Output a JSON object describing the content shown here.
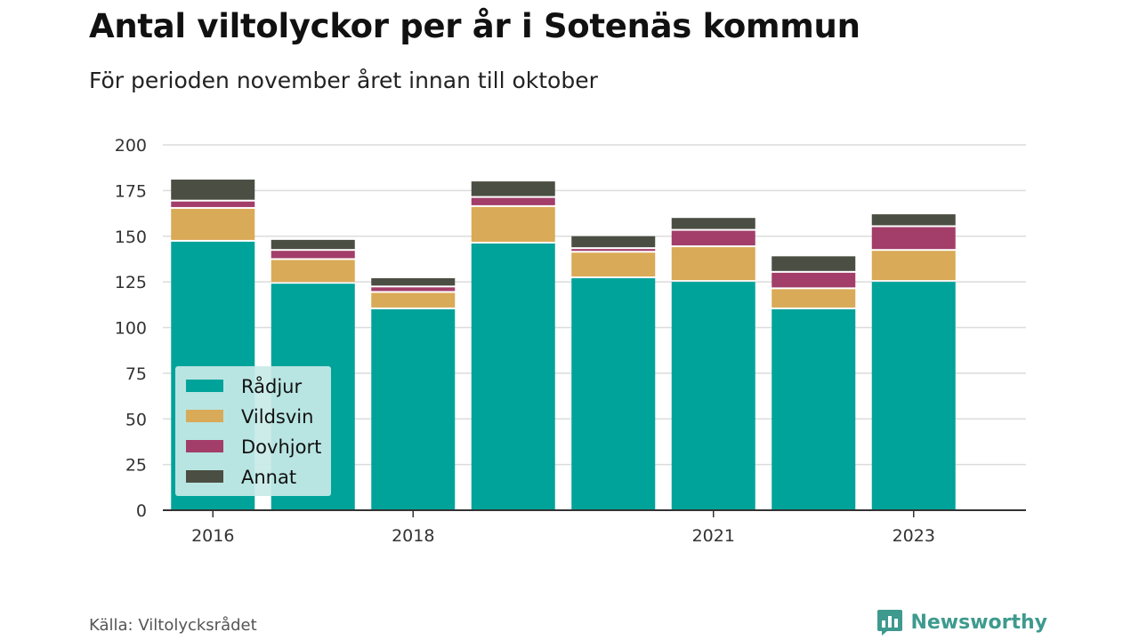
{
  "title": "Antal viltolyckor per år i Sotenäs kommun",
  "subtitle": "För perioden november året innan till oktober",
  "source": "Källa: Viltolycksrådet",
  "brand": "Newsworthy",
  "colors": {
    "Rådjur": "#00a39a",
    "Vildsvin": "#d9aa57",
    "Dovhjort": "#a23e69",
    "Annat": "#4b4e42",
    "legend_bg": "#c8eae8",
    "brand": "#3e9a8e"
  },
  "chart_data": {
    "type": "bar",
    "stacked": true,
    "categories": [
      "2016",
      "2017",
      "2018",
      "2019",
      "2020",
      "2021",
      "2022",
      "2023"
    ],
    "tick_labels": [
      "2016",
      "",
      "2018",
      "",
      "",
      "2021",
      "",
      "2023"
    ],
    "series": [
      {
        "name": "Rådjur",
        "values": [
          147,
          124,
          110,
          146,
          127,
          125,
          110,
          125
        ]
      },
      {
        "name": "Vildsvin",
        "values": [
          18,
          13,
          9,
          20,
          14,
          19,
          11,
          17
        ]
      },
      {
        "name": "Dovhjort",
        "values": [
          4,
          5,
          3,
          5,
          2,
          9,
          9,
          13
        ]
      },
      {
        "name": "Annat",
        "values": [
          12,
          6,
          5,
          9,
          7,
          7,
          9,
          7
        ]
      }
    ],
    "yticks": [
      0,
      25,
      50,
      75,
      100,
      125,
      150,
      175,
      200
    ],
    "ylim": [
      0,
      200
    ],
    "grid": true,
    "legend": "bottom-left, inside plot",
    "title": "Antal viltolyckor per år i Sotenäs kommun",
    "xlabel": "",
    "ylabel": ""
  }
}
